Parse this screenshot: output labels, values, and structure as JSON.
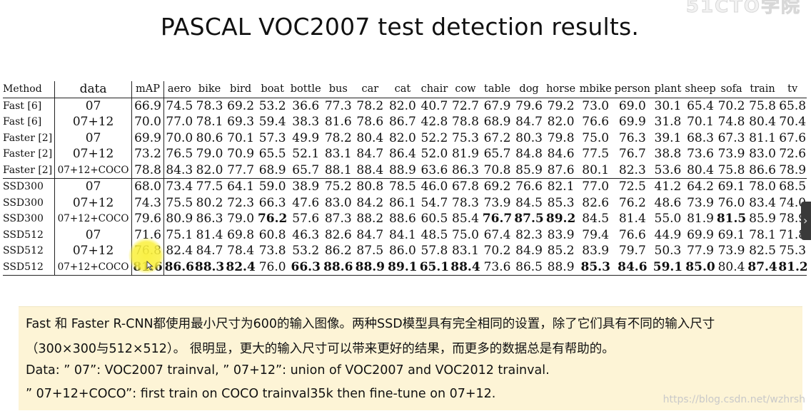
{
  "title": "PASCAL VOC2007 test detection results.",
  "watermark_top": "51CTO学院",
  "watermark_bottom": "https://blog.csdn.net/wzhrsh",
  "table": {
    "headers": [
      "Method",
      "data",
      "mAP",
      "aero",
      "bike",
      "bird",
      "boat",
      "bottle",
      "bus",
      "car",
      "cat",
      "chair",
      "cow",
      "table",
      "dog",
      "horse",
      "mbike",
      "person",
      "plant",
      "sheep",
      "sofa",
      "train",
      "tv"
    ],
    "rows": [
      {
        "method": "Fast [6]",
        "data": "07",
        "values": [
          "66.9",
          "74.5",
          "78.3",
          "69.2",
          "53.2",
          "36.6",
          "77.3",
          "78.2",
          "82.0",
          "40.7",
          "72.7",
          "67.9",
          "79.6",
          "79.2",
          "73.0",
          "69.0",
          "30.1",
          "65.4",
          "70.2",
          "75.8",
          "65.8"
        ],
        "bold": []
      },
      {
        "method": "Fast [6]",
        "data": "07+12",
        "values": [
          "70.0",
          "77.0",
          "78.1",
          "69.3",
          "59.4",
          "38.3",
          "81.6",
          "78.6",
          "86.7",
          "42.8",
          "78.8",
          "68.9",
          "84.7",
          "82.0",
          "76.6",
          "69.9",
          "31.8",
          "70.1",
          "74.8",
          "80.4",
          "70.4"
        ],
        "bold": []
      },
      {
        "method": "Faster [2]",
        "data": "07",
        "values": [
          "69.9",
          "70.0",
          "80.6",
          "70.1",
          "57.3",
          "49.9",
          "78.2",
          "80.4",
          "82.0",
          "52.2",
          "75.3",
          "67.2",
          "80.3",
          "79.8",
          "75.0",
          "76.3",
          "39.1",
          "68.3",
          "67.3",
          "81.1",
          "67.6"
        ],
        "bold": []
      },
      {
        "method": "Faster [2]",
        "data": "07+12",
        "values": [
          "73.2",
          "76.5",
          "79.0",
          "70.9",
          "65.5",
          "52.1",
          "83.1",
          "84.7",
          "86.4",
          "52.0",
          "81.9",
          "65.7",
          "84.8",
          "84.6",
          "77.5",
          "76.7",
          "38.8",
          "73.6",
          "73.9",
          "83.0",
          "72.6"
        ],
        "bold": []
      },
      {
        "method": "Faster [2]",
        "data": "07+12+COCO",
        "values": [
          "78.8",
          "84.3",
          "82.0",
          "77.7",
          "68.9",
          "65.7",
          "88.1",
          "88.4",
          "88.9",
          "63.6",
          "86.3",
          "70.8",
          "85.9",
          "87.6",
          "80.1",
          "82.3",
          "53.6",
          "80.4",
          "75.8",
          "86.6",
          "78.9"
        ],
        "bold": []
      },
      {
        "method": "SSD300",
        "data": "07",
        "values": [
          "68.0",
          "73.4",
          "77.5",
          "64.1",
          "59.0",
          "38.9",
          "75.2",
          "80.8",
          "78.5",
          "46.0",
          "67.8",
          "69.2",
          "76.6",
          "82.1",
          "77.0",
          "72.5",
          "41.2",
          "64.2",
          "69.1",
          "78.0",
          "68.5"
        ],
        "bold": []
      },
      {
        "method": "SSD300",
        "data": "07+12",
        "values": [
          "74.3",
          "75.5",
          "80.2",
          "72.3",
          "66.3",
          "47.6",
          "83.0",
          "84.2",
          "86.1",
          "54.7",
          "78.3",
          "73.9",
          "84.5",
          "85.3",
          "82.6",
          "76.2",
          "48.6",
          "73.9",
          "76.0",
          "83.4",
          "74.0"
        ],
        "bold": []
      },
      {
        "method": "SSD300",
        "data": "07+12+COCO",
        "values": [
          "79.6",
          "80.9",
          "86.3",
          "79.0",
          "76.2",
          "57.6",
          "87.3",
          "88.2",
          "88.6",
          "60.5",
          "85.4",
          "76.7",
          "87.5",
          "89.2",
          "84.5",
          "81.4",
          "55.0",
          "81.9",
          "81.5",
          "85.9",
          "78.9"
        ],
        "bold": [
          4,
          11,
          12,
          13,
          18
        ]
      },
      {
        "method": "SSD512",
        "data": "07",
        "values": [
          "71.6",
          "75.1",
          "81.4",
          "69.8",
          "60.8",
          "46.3",
          "82.6",
          "84.7",
          "84.1",
          "48.5",
          "75.0",
          "67.4",
          "82.3",
          "83.9",
          "79.4",
          "76.6",
          "44.9",
          "69.9",
          "69.1",
          "78.1",
          "71.8"
        ],
        "bold": []
      },
      {
        "method": "SSD512",
        "data": "07+12",
        "values": [
          "76.8",
          "82.4",
          "84.7",
          "78.4",
          "73.8",
          "53.2",
          "86.2",
          "87.5",
          "86.0",
          "57.8",
          "83.1",
          "70.2",
          "84.9",
          "85.2",
          "83.9",
          "79.7",
          "50.3",
          "77.9",
          "73.9",
          "82.5",
          "75.3"
        ],
        "bold": []
      },
      {
        "method": "SSD512",
        "data": "07+12+COCO",
        "values": [
          "81.6",
          "86.6",
          "88.3",
          "82.4",
          "76.0",
          "66.3",
          "88.6",
          "88.9",
          "89.1",
          "65.1",
          "88.4",
          "73.6",
          "86.5",
          "88.9",
          "85.3",
          "84.6",
          "59.1",
          "85.0",
          "80.4",
          "87.4",
          "81.2"
        ],
        "bold": [
          0,
          1,
          2,
          3,
          5,
          6,
          7,
          8,
          9,
          10,
          14,
          15,
          16,
          17,
          19,
          20
        ]
      }
    ]
  },
  "notes": [
    "Fast 和 Faster R-CNN都使用最小尺寸为600的输入图像。两种SSD模型具有完全相同的设置，除了它们具有不同的输入尺寸",
    "（300×300与512×512）。 很明显，更大的输入尺寸可以带来更好的结果，而更多的数据总是有帮助的。",
    "Data: ” 07”: VOC2007 trainval, ” 07+12”: union of VOC2007 and VOC2012 trainval.",
    "” 07+12+COCO”: first train on COCO trainval35k then fine-tune on 07+12."
  ],
  "colors": {
    "highlight": "#faf03c",
    "note_bg": "#fdf4d6"
  },
  "icons": {
    "nav": "chevron-right-icon",
    "cursor": "pointer-icon"
  }
}
